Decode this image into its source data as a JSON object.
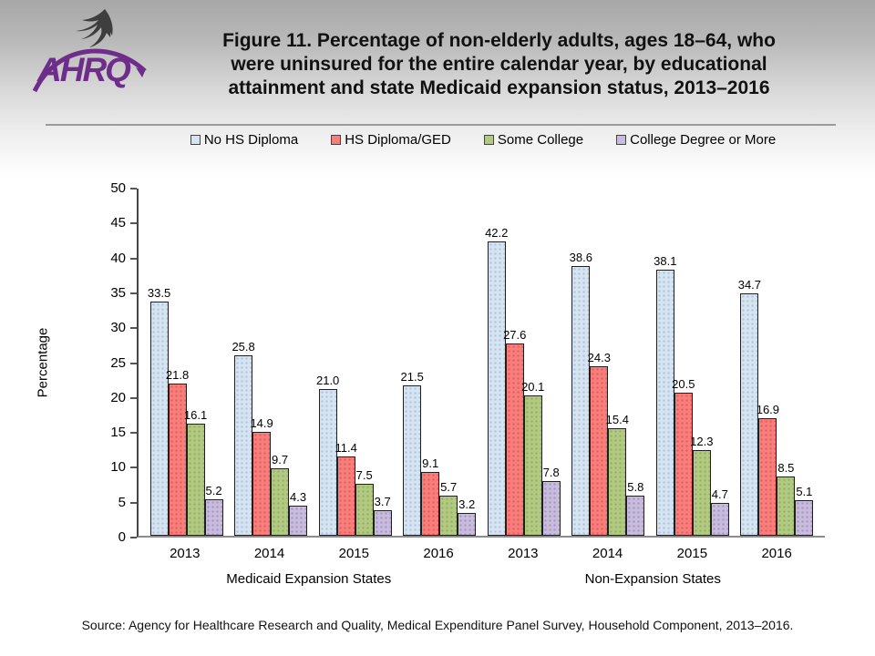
{
  "header": {
    "logo": {
      "org_abbr": "AHRQ"
    },
    "title_lines": [
      "Figure 11. Percentage of non-elderly adults, ages 18–64, who",
      "were uninsured for the entire calendar year, by educational",
      "attainment and state Medicaid expansion status, 2013–2016"
    ]
  },
  "legend": {
    "items": [
      {
        "label": "No HS Diploma",
        "color": "#D6E3F0"
      },
      {
        "label": "HS Diploma/GED",
        "color": "#F87E7B"
      },
      {
        "label": "Some College",
        "color": "#B2C982"
      },
      {
        "label": "College Degree or More",
        "color": "#C8BCDC"
      }
    ]
  },
  "chart_data": {
    "type": "bar",
    "title": "Percentage of non-elderly adults, ages 18–64, uninsured for the entire calendar year, by educational attainment and state Medicaid expansion status, 2013–2016",
    "ylabel": "Percentage",
    "xlabel": "",
    "ylim": [
      0,
      50
    ],
    "yticks": [
      0,
      5,
      10,
      15,
      20,
      25,
      30,
      35,
      40,
      45,
      50
    ],
    "grid": false,
    "legend_position": "top",
    "categories": [
      "2013",
      "2014",
      "2015",
      "2016",
      "2013",
      "2014",
      "2015",
      "2016"
    ],
    "sections": [
      {
        "label": "Medicaid Expansion States",
        "category_span": [
          0,
          3
        ]
      },
      {
        "label": "Non-Expansion States",
        "category_span": [
          4,
          7
        ]
      }
    ],
    "series": [
      {
        "name": "No HS Diploma",
        "color": "#D6E3F0",
        "dot_color": "rgba(90,130,180,0.30)",
        "values": [
          33.5,
          25.8,
          21.0,
          21.5,
          42.2,
          38.6,
          38.1,
          34.7
        ]
      },
      {
        "name": "HS Diploma/GED",
        "color": "#F87E7B",
        "dot_color": "rgba(190,40,40,0.35)",
        "values": [
          21.8,
          14.9,
          11.4,
          9.1,
          27.6,
          24.3,
          20.5,
          16.9
        ]
      },
      {
        "name": "Some College",
        "color": "#B2C982",
        "dot_color": "rgba(100,130,40,0.35)",
        "values": [
          16.1,
          9.7,
          7.5,
          5.7,
          20.1,
          15.4,
          12.3,
          8.5
        ]
      },
      {
        "name": "College Degree or More",
        "color": "#C8BCDC",
        "dot_color": "rgba(110,85,160,0.35)",
        "values": [
          5.2,
          4.3,
          3.7,
          3.2,
          7.8,
          5.8,
          4.7,
          5.1
        ]
      }
    ]
  },
  "source": "Source: Agency for Healthcare Research and Quality, Medical Expenditure Panel Survey, Household Component, 2013–2016."
}
